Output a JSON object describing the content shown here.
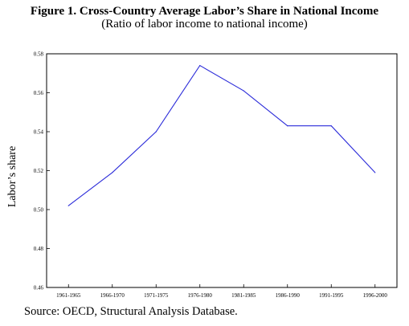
{
  "figure": {
    "title": "Figure 1. Cross-Country Average Labor’s Share in National Income",
    "subtitle": "(Ratio of labor income to national income)",
    "source": "Source: OECD, Structural Analysis Database."
  },
  "chart_data": {
    "type": "line",
    "title": "Figure 1. Cross-Country Average Labor’s Share in National Income",
    "subtitle": "(Ratio of labor income to national income)",
    "ylabel": "Labor’s share",
    "xlabel": "",
    "categories": [
      "1961-1965",
      "1966-1970",
      "1971-1975",
      "1976-1980",
      "1981-1985",
      "1986-1990",
      "1991-1995",
      "1996-2000"
    ],
    "series": [
      {
        "values": [
          0.502,
          0.519,
          0.54,
          0.574,
          0.561,
          0.543,
          0.543,
          0.519
        ]
      }
    ],
    "yticks": [
      0.46,
      0.48,
      0.5,
      0.52,
      0.54,
      0.56,
      0.58
    ],
    "ytick_labels": [
      "0.46",
      "0.48",
      "0.50",
      "0.52",
      "0.54",
      "0.56",
      "0.58"
    ],
    "ylim": [
      0.46,
      0.58
    ],
    "grid": false,
    "line_color": "#2b2bd9"
  }
}
